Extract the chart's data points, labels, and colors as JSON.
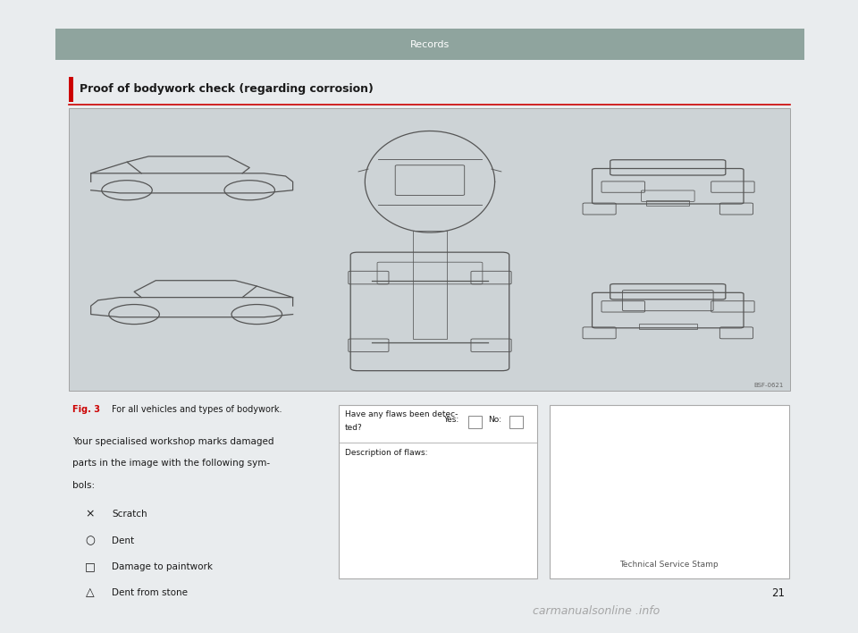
{
  "page_bg": "#e9ecee",
  "content_bg": "#ffffff",
  "header_bg": "#8fa49e",
  "header_text": "Records",
  "header_text_color": "#ffffff",
  "section_title": "Proof of bodywork check (regarding corrosion)",
  "section_title_color": "#1a1a1a",
  "red_color": "#cc0000",
  "car_panel_bg": "#cdd3d6",
  "car_line_color": "#555555",
  "fig_label": "Fig. 3",
  "fig_caption": "For all vehicles and types of bodywork.",
  "body_text_lines": [
    "Your specialised workshop marks damaged",
    "parts in the image with the following sym-",
    "bols:"
  ],
  "symbols": [
    {
      "symbol": "×",
      "label": "Scratch"
    },
    {
      "symbol": "○",
      "label": "Dent"
    },
    {
      "symbol": "□",
      "label": "Damage to paintwork"
    },
    {
      "symbol": "△",
      "label": "Dent from stone"
    }
  ],
  "form_yes": "Yes:",
  "form_no": "No:",
  "form_flaws_label1": "Have any flaws been detec-",
  "form_flaws_label2": "ted?",
  "form_desc": "Description of flaws:",
  "stamp_text": "Technical Service Stamp",
  "page_number": "21",
  "watermark": "carmanualsonline .info",
  "bsf_code": "BSF-0621"
}
